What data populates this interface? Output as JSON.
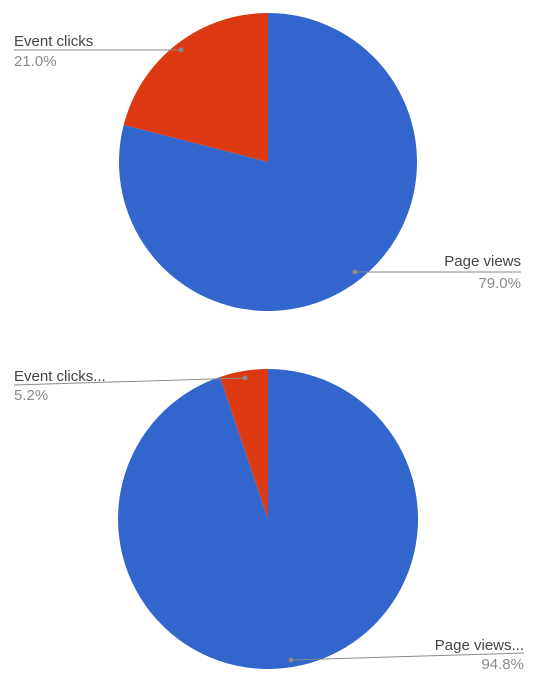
{
  "colors": {
    "page_views": "#3366cc",
    "event_clicks": "#dc3912",
    "leader": "#8a8a8a"
  },
  "chart_data": [
    {
      "type": "pie",
      "slices": [
        {
          "label": "Event clicks",
          "value": 21.0,
          "percent_label": "21.0%",
          "color": "#dc3912"
        },
        {
          "label": "Page views",
          "value": 79.0,
          "percent_label": "79.0%",
          "color": "#3366cc"
        }
      ]
    },
    {
      "type": "pie",
      "slices": [
        {
          "label": "Event clicks...",
          "value": 5.2,
          "percent_label": "5.2%",
          "color": "#dc3912"
        },
        {
          "label": "Page views...",
          "value": 94.8,
          "percent_label": "94.8%",
          "color": "#3366cc"
        }
      ]
    }
  ]
}
